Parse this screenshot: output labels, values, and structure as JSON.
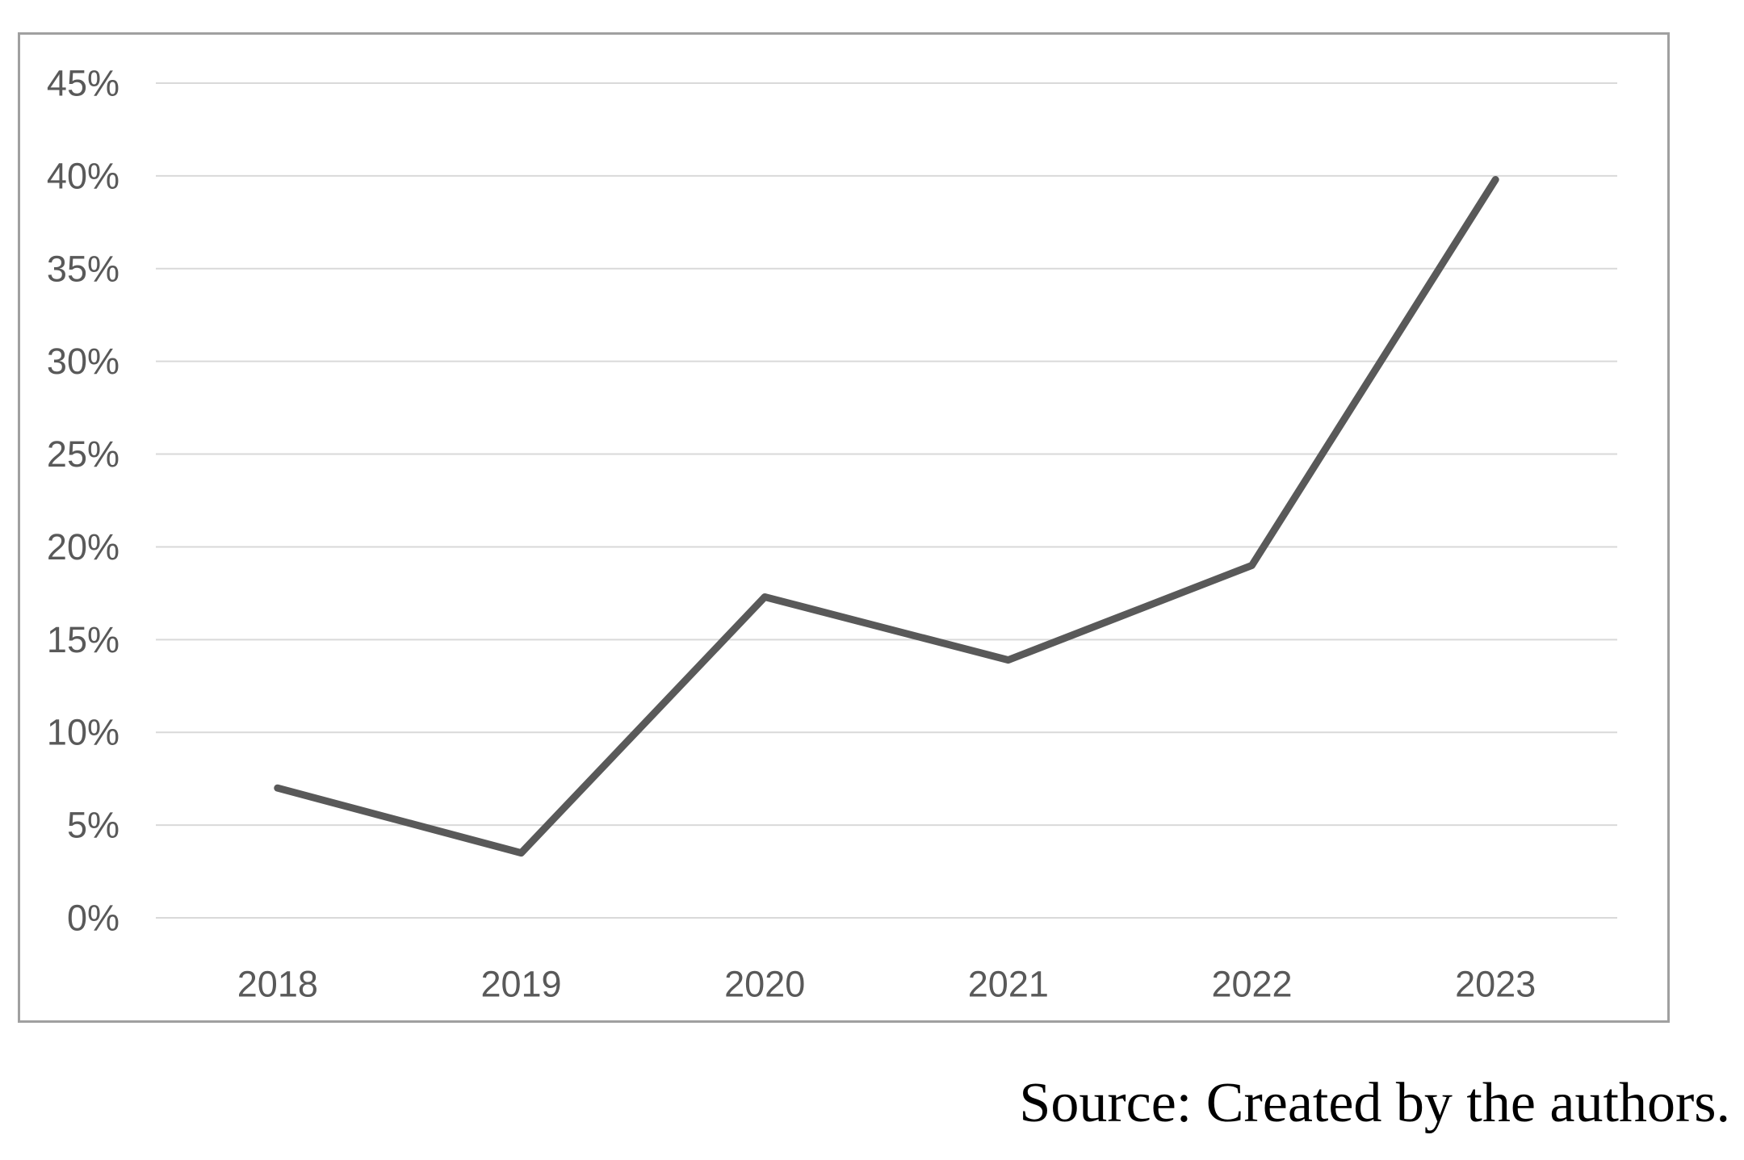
{
  "figure": {
    "background": "#ffffff"
  },
  "chart_data": {
    "type": "line",
    "categories": [
      "2018",
      "2019",
      "2020",
      "2021",
      "2022",
      "2023"
    ],
    "values": [
      7.0,
      3.5,
      17.3,
      13.9,
      19.0,
      39.8
    ],
    "unit": "%",
    "title": "",
    "xlabel": "",
    "ylabel": "",
    "ylim": [
      0,
      45
    ],
    "ytick_step": 5,
    "ytick_labels": [
      "0%",
      "5%",
      "10%",
      "15%",
      "20%",
      "25%",
      "30%",
      "35%",
      "40%",
      "45%"
    ],
    "grid": true,
    "legend_position": "none",
    "colors": {
      "line": "#595959",
      "gridline": "#d9d9d9",
      "tick_label": "#595959",
      "plot_border": "#a0a0a0"
    }
  },
  "caption": {
    "text": "Source: Created by the authors."
  }
}
